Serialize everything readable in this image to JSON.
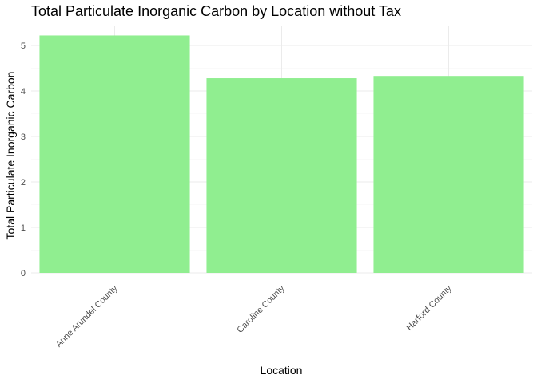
{
  "chart_data": {
    "type": "bar",
    "title": "Total Particulate Inorganic Carbon by Location without Tax",
    "xlabel": "Location",
    "ylabel": "Total Particulate Inorganic Carbon",
    "categories": [
      "Anne Arundel County",
      "Caroline County",
      "Harford County"
    ],
    "values": [
      5.22,
      4.28,
      4.33
    ],
    "ylim": [
      0,
      5.4
    ],
    "yticks": [
      0,
      1,
      2,
      3,
      4,
      5
    ],
    "grid": true,
    "legend": "none",
    "bar_color": "#90ee90"
  }
}
